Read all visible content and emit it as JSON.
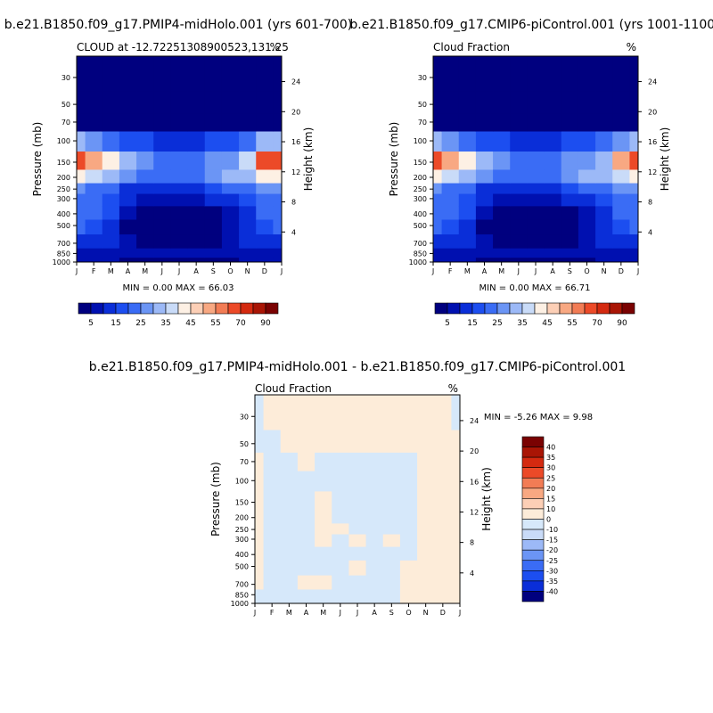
{
  "chart_data": [
    {
      "type": "heatmap",
      "title": "b.e21.B1850.f09_g17.PMIP4-midHolo.001 (yrs 601-700)",
      "subtitle_left": "CLOUD at -12.72251308900523,131.25",
      "subtitle_right": "%",
      "xlabel": "",
      "ylabel": "Pressure (mb)",
      "ylabel_right": "Height (km)",
      "x_ticks": [
        "J",
        "F",
        "M",
        "A",
        "M",
        "J",
        "J",
        "A",
        "S",
        "O",
        "N",
        "D",
        "J"
      ],
      "y_ticks": [
        30,
        50,
        70,
        100,
        150,
        200,
        250,
        300,
        400,
        500,
        700,
        850,
        1000
      ],
      "height_ticks": [
        24,
        20,
        16,
        12,
        8,
        4
      ],
      "ylim": [
        1000,
        20
      ],
      "stats_text": "MIN =   0.00 MAX =  66.03",
      "min": 0.0,
      "max": 66.03,
      "colorbar": {
        "orientation": "horizontal",
        "labels": [
          "5",
          "15",
          "25",
          "35",
          "45",
          "55",
          "70",
          "90"
        ],
        "colors": [
          "#00007f",
          "#0010b0",
          "#0a2ed8",
          "#1c4ef0",
          "#3a6cf5",
          "#6b95f5",
          "#9cb9f7",
          "#c9dbf8",
          "#fdf0e4",
          "#fccfb6",
          "#f8a882",
          "#f27c55",
          "#ec4a28",
          "#d42a10",
          "#a91505",
          "#7a0202"
        ]
      },
      "column_profiles": [
        {
          "month": "J",
          "values": {
            "30": 0,
            "50": 0,
            "70": 2,
            "100": 30,
            "150": 64,
            "200": 40,
            "250": 26,
            "300": 22,
            "400": 22,
            "500": 20,
            "700": 14,
            "850": 9,
            "1000": 6
          }
        },
        {
          "month": "F",
          "values": {
            "30": 0,
            "50": 0,
            "70": 1,
            "100": 28,
            "150": 52,
            "200": 36,
            "250": 24,
            "300": 20,
            "400": 20,
            "500": 18,
            "700": 12,
            "850": 8,
            "1000": 5
          }
        },
        {
          "month": "M",
          "values": {
            "30": 0,
            "50": 0,
            "70": 1,
            "100": 22,
            "150": 40,
            "200": 30,
            "250": 20,
            "300": 16,
            "400": 16,
            "500": 14,
            "700": 10,
            "850": 7,
            "1000": 5
          }
        },
        {
          "month": "A",
          "values": {
            "30": 0,
            "50": 0,
            "70": 1,
            "100": 18,
            "150": 32,
            "200": 26,
            "250": 14,
            "300": 10,
            "400": 6,
            "500": 4,
            "700": 8,
            "850": 6,
            "1000": 4
          }
        },
        {
          "month": "M",
          "values": {
            "30": 0,
            "50": 0,
            "70": 1,
            "100": 16,
            "150": 28,
            "200": 24,
            "250": 11,
            "300": 8,
            "400": 3,
            "500": 1,
            "700": 3,
            "850": 6,
            "1000": 4
          }
        },
        {
          "month": "J",
          "values": {
            "30": 0,
            "50": 0,
            "70": 1,
            "100": 12,
            "150": 22,
            "200": 20,
            "250": 10,
            "300": 7,
            "400": 2,
            "500": 1,
            "700": 3,
            "850": 6,
            "1000": 4
          }
        },
        {
          "month": "J",
          "values": {
            "30": 0,
            "50": 0,
            "70": 1,
            "100": 12,
            "150": 22,
            "200": 20,
            "250": 10,
            "300": 7,
            "400": 2,
            "500": 1,
            "700": 3,
            "850": 6,
            "1000": 4
          }
        },
        {
          "month": "A",
          "values": {
            "30": 0,
            "50": 0,
            "70": 1,
            "100": 14,
            "150": 24,
            "200": 22,
            "250": 12,
            "300": 8,
            "400": 2,
            "500": 1,
            "700": 3,
            "850": 6,
            "1000": 4
          }
        },
        {
          "month": "S",
          "values": {
            "30": 0,
            "50": 0,
            "70": 1,
            "100": 16,
            "150": 26,
            "200": 26,
            "250": 16,
            "300": 10,
            "400": 3,
            "500": 2,
            "700": 4,
            "850": 6,
            "1000": 4
          }
        },
        {
          "month": "O",
          "values": {
            "30": 0,
            "50": 0,
            "70": 1,
            "100": 18,
            "150": 28,
            "200": 30,
            "250": 22,
            "300": 14,
            "400": 6,
            "500": 6,
            "700": 8,
            "850": 6,
            "1000": 4
          }
        },
        {
          "month": "N",
          "values": {
            "30": 0,
            "50": 0,
            "70": 1,
            "100": 24,
            "150": 38,
            "200": 32,
            "250": 22,
            "300": 18,
            "400": 14,
            "500": 12,
            "700": 10,
            "850": 7,
            "1000": 5
          }
        },
        {
          "month": "D",
          "values": {
            "30": 0,
            "50": 0,
            "70": 2,
            "100": 30,
            "150": 60,
            "200": 40,
            "250": 26,
            "300": 22,
            "400": 20,
            "500": 18,
            "700": 12,
            "850": 9,
            "1000": 6
          }
        },
        {
          "month": "J",
          "values": {
            "30": 0,
            "50": 0,
            "70": 2,
            "100": 30,
            "150": 64,
            "200": 40,
            "250": 26,
            "300": 22,
            "400": 22,
            "500": 20,
            "700": 14,
            "850": 9,
            "1000": 6
          }
        }
      ]
    },
    {
      "type": "heatmap",
      "title": "b.e21.B1850.f09_g17.CMIP6-piControl.001 (yrs 1001-1100)",
      "subtitle_left": "Cloud Fraction",
      "subtitle_right": "%",
      "xlabel": "",
      "ylabel": "Pressure (mb)",
      "ylabel_right": "Height (km)",
      "x_ticks": [
        "J",
        "F",
        "M",
        "A",
        "M",
        "J",
        "J",
        "A",
        "S",
        "O",
        "N",
        "D",
        "J"
      ],
      "y_ticks": [
        30,
        50,
        70,
        100,
        150,
        200,
        250,
        300,
        400,
        500,
        700,
        850,
        1000
      ],
      "height_ticks": [
        24,
        20,
        16,
        12,
        8,
        4
      ],
      "ylim": [
        1000,
        20
      ],
      "stats_text": "MIN =   0.00 MAX =  66.71",
      "min": 0.0,
      "max": 66.71,
      "colorbar": {
        "orientation": "horizontal",
        "labels": [
          "5",
          "15",
          "25",
          "35",
          "45",
          "55",
          "70",
          "90"
        ],
        "colors": [
          "#00007f",
          "#0010b0",
          "#0a2ed8",
          "#1c4ef0",
          "#3a6cf5",
          "#6b95f5",
          "#9cb9f7",
          "#c9dbf8",
          "#fdf0e4",
          "#fccfb6",
          "#f8a882",
          "#f27c55",
          "#ec4a28",
          "#d42a10",
          "#a91505",
          "#7a0202"
        ]
      },
      "column_profiles": [
        {
          "month": "J",
          "values": {
            "30": 0,
            "50": 0,
            "70": 2,
            "100": 30,
            "150": 66,
            "200": 40,
            "250": 26,
            "300": 22,
            "400": 22,
            "500": 20,
            "700": 14,
            "850": 9,
            "1000": 6
          }
        },
        {
          "month": "F",
          "values": {
            "30": 0,
            "50": 0,
            "70": 1,
            "100": 28,
            "150": 54,
            "200": 36,
            "250": 24,
            "300": 20,
            "400": 20,
            "500": 18,
            "700": 12,
            "850": 8,
            "1000": 5
          }
        },
        {
          "month": "M",
          "values": {
            "30": 0,
            "50": 0,
            "70": 1,
            "100": 22,
            "150": 40,
            "200": 30,
            "250": 20,
            "300": 16,
            "400": 16,
            "500": 14,
            "700": 10,
            "850": 7,
            "1000": 5
          }
        },
        {
          "month": "A",
          "values": {
            "30": 0,
            "50": 0,
            "70": 1,
            "100": 18,
            "150": 32,
            "200": 26,
            "250": 14,
            "300": 10,
            "400": 6,
            "500": 4,
            "700": 8,
            "850": 6,
            "1000": 4
          }
        },
        {
          "month": "M",
          "values": {
            "30": 0,
            "50": 0,
            "70": 1,
            "100": 16,
            "150": 28,
            "200": 24,
            "250": 11,
            "300": 8,
            "400": 3,
            "500": 1,
            "700": 3,
            "850": 6,
            "1000": 4
          }
        },
        {
          "month": "J",
          "values": {
            "30": 0,
            "50": 0,
            "70": 1,
            "100": 12,
            "150": 22,
            "200": 20,
            "250": 10,
            "300": 7,
            "400": 2,
            "500": 1,
            "700": 3,
            "850": 6,
            "1000": 4
          }
        },
        {
          "month": "J",
          "values": {
            "30": 0,
            "50": 0,
            "70": 1,
            "100": 12,
            "150": 22,
            "200": 20,
            "250": 10,
            "300": 7,
            "400": 2,
            "500": 1,
            "700": 3,
            "850": 6,
            "1000": 4
          }
        },
        {
          "month": "A",
          "values": {
            "30": 0,
            "50": 0,
            "70": 1,
            "100": 14,
            "150": 24,
            "200": 22,
            "250": 12,
            "300": 8,
            "400": 2,
            "500": 1,
            "700": 3,
            "850": 6,
            "1000": 4
          }
        },
        {
          "month": "S",
          "values": {
            "30": 0,
            "50": 0,
            "70": 1,
            "100": 16,
            "150": 26,
            "200": 26,
            "250": 16,
            "300": 10,
            "400": 3,
            "500": 2,
            "700": 4,
            "850": 6,
            "1000": 4
          }
        },
        {
          "month": "O",
          "values": {
            "30": 0,
            "50": 0,
            "70": 1,
            "100": 18,
            "150": 28,
            "200": 30,
            "250": 22,
            "300": 14,
            "400": 6,
            "500": 6,
            "700": 8,
            "850": 6,
            "1000": 4
          }
        },
        {
          "month": "N",
          "values": {
            "30": 0,
            "50": 0,
            "70": 1,
            "100": 22,
            "150": 34,
            "200": 30,
            "250": 22,
            "300": 18,
            "400": 14,
            "500": 12,
            "700": 10,
            "850": 7,
            "1000": 5
          }
        },
        {
          "month": "D",
          "values": {
            "30": 0,
            "50": 0,
            "70": 2,
            "100": 28,
            "150": 52,
            "200": 38,
            "250": 26,
            "300": 22,
            "400": 20,
            "500": 18,
            "700": 12,
            "850": 9,
            "1000": 6
          }
        },
        {
          "month": "J",
          "values": {
            "30": 0,
            "50": 0,
            "70": 2,
            "100": 30,
            "150": 66,
            "200": 40,
            "250": 26,
            "300": 22,
            "400": 22,
            "500": 20,
            "700": 14,
            "850": 9,
            "1000": 6
          }
        }
      ]
    },
    {
      "type": "heatmap",
      "title": "b.e21.B1850.f09_g17.PMIP4-midHolo.001 - b.e21.B1850.f09_g17.CMIP6-piControl.001",
      "subtitle_left": "Cloud Fraction",
      "subtitle_right": "%",
      "xlabel": "",
      "ylabel": "Pressure (mb)",
      "ylabel_right": "Height (km)",
      "x_ticks": [
        "J",
        "F",
        "M",
        "A",
        "M",
        "J",
        "J",
        "A",
        "S",
        "O",
        "N",
        "D",
        "J"
      ],
      "y_ticks": [
        30,
        50,
        70,
        100,
        150,
        200,
        250,
        300,
        400,
        500,
        700,
        850,
        1000
      ],
      "height_ticks": [
        24,
        20,
        16,
        12,
        8,
        4
      ],
      "ylim": [
        1000,
        20
      ],
      "stats_text": "MIN =  -5.26 MAX =   9.98",
      "min": -5.26,
      "max": 9.98,
      "colorbar": {
        "orientation": "vertical",
        "labels": [
          "40",
          "35",
          "30",
          "25",
          "20",
          "15",
          "10",
          "0",
          "-10",
          "-15",
          "-20",
          "-25",
          "-30",
          "-35",
          "-40"
        ],
        "colors": [
          "#7a0202",
          "#a91505",
          "#d42a10",
          "#ec4a28",
          "#f27c55",
          "#f8a882",
          "#fccfb6",
          "#fdecd9",
          "#d6e8fa",
          "#c9dbf8",
          "#9cb9f7",
          "#6b95f5",
          "#3a6cf5",
          "#1c4ef0",
          "#0a2ed8",
          "#00007f"
        ]
      },
      "positive_color": "#fdecd9",
      "negative_color": "#d6e8fa",
      "column_profiles": [
        {
          "month": "J",
          "values": {
            "30": -1,
            "50": -1,
            "70": 2,
            "100": 2,
            "150": 2,
            "200": 2,
            "250": 2,
            "300": 2,
            "400": 2,
            "500": 2,
            "700": 2,
            "850": -1,
            "1000": -1
          }
        },
        {
          "month": "F",
          "values": {
            "30": 2,
            "50": -1,
            "70": -1,
            "100": -1,
            "150": -1,
            "200": -1,
            "250": -1,
            "300": -1,
            "400": -1,
            "500": -1,
            "700": -1,
            "850": -1,
            "1000": -1
          }
        },
        {
          "month": "M",
          "values": {
            "30": 2,
            "50": 2,
            "70": -1,
            "100": -1,
            "150": -1,
            "200": -1,
            "250": -1,
            "300": -1,
            "400": -1,
            "500": -1,
            "700": -1,
            "850": -1,
            "1000": -1
          }
        },
        {
          "month": "A",
          "values": {
            "30": 2,
            "50": 2,
            "70": 2,
            "100": -1,
            "150": -1,
            "200": -1,
            "250": -1,
            "300": -1,
            "400": -1,
            "500": -1,
            "700": 2,
            "850": -1,
            "1000": -1
          }
        },
        {
          "month": "M",
          "values": {
            "30": 2,
            "50": 2,
            "70": -1,
            "100": -1,
            "150": 2,
            "200": 2,
            "250": 2,
            "300": 2,
            "400": -1,
            "500": -1,
            "700": 2,
            "850": -1,
            "1000": -1
          }
        },
        {
          "month": "J",
          "values": {
            "30": 2,
            "50": 2,
            "70": -1,
            "100": -1,
            "150": -1,
            "200": -1,
            "250": 2,
            "300": -1,
            "400": -1,
            "500": -1,
            "700": -1,
            "850": -1,
            "1000": -1
          }
        },
        {
          "month": "J",
          "values": {
            "30": 2,
            "50": 2,
            "70": -1,
            "100": -1,
            "150": -1,
            "200": -1,
            "250": -1,
            "300": 2,
            "400": -1,
            "500": 2,
            "700": -1,
            "850": -1,
            "1000": -1
          }
        },
        {
          "month": "A",
          "values": {
            "30": 2,
            "50": 2,
            "70": -1,
            "100": -1,
            "150": -1,
            "200": -1,
            "250": -1,
            "300": -1,
            "400": -1,
            "500": -1,
            "700": -1,
            "850": -1,
            "1000": -1
          }
        },
        {
          "month": "S",
          "values": {
            "30": 2,
            "50": 2,
            "70": -1,
            "100": -1,
            "150": -1,
            "200": -1,
            "250": -1,
            "300": 2,
            "400": -1,
            "500": -1,
            "700": -1,
            "850": -1,
            "1000": -1
          }
        },
        {
          "month": "O",
          "values": {
            "30": 2,
            "50": 2,
            "70": -1,
            "100": -1,
            "150": -1,
            "200": -1,
            "250": -1,
            "300": -1,
            "400": -1,
            "500": 2,
            "700": 2,
            "850": 2,
            "1000": 2
          }
        },
        {
          "month": "N",
          "values": {
            "30": 2,
            "50": 2,
            "70": 2,
            "100": 2,
            "150": 2,
            "200": 2,
            "250": 2,
            "300": 2,
            "400": 2,
            "500": 2,
            "700": 2,
            "850": 2,
            "1000": 2
          }
        },
        {
          "month": "D",
          "values": {
            "30": 2,
            "50": 2,
            "70": 2,
            "100": 2,
            "150": 2,
            "200": 2,
            "250": 2,
            "300": 2,
            "400": 2,
            "500": 2,
            "700": 2,
            "850": 2,
            "1000": 2
          }
        },
        {
          "month": "J",
          "values": {
            "30": -1,
            "50": 2,
            "70": 2,
            "100": 2,
            "150": 2,
            "200": 2,
            "250": 2,
            "300": 2,
            "400": 2,
            "500": 2,
            "700": 2,
            "850": 2,
            "1000": 2
          }
        }
      ]
    }
  ]
}
